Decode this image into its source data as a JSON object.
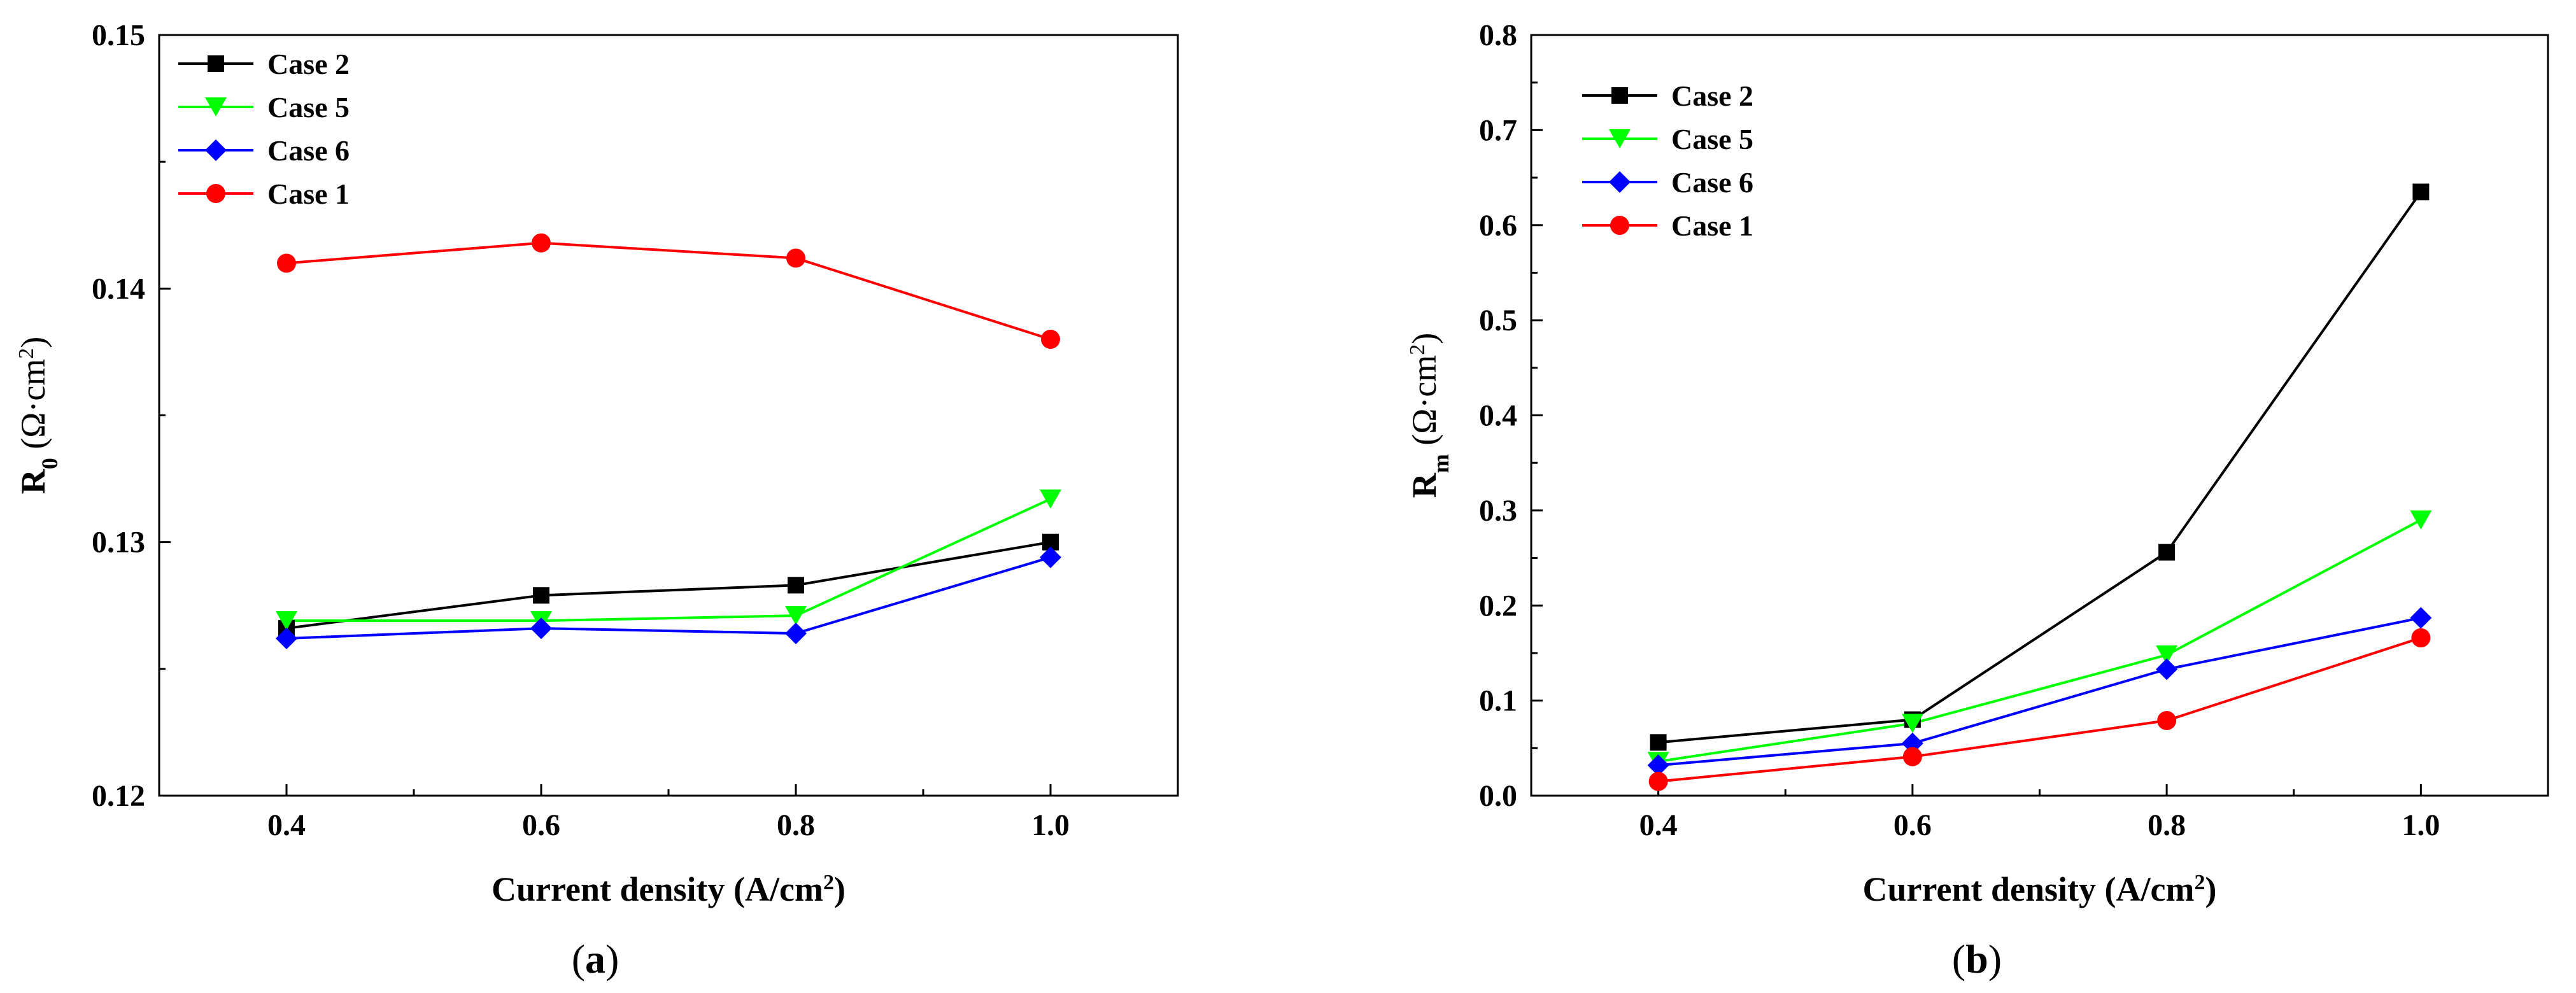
{
  "chart_data": [
    {
      "type": "line",
      "panel_label": "(a)",
      "panel_prefix": "(",
      "panel_letter": "a",
      "panel_suffix": ")",
      "xlabel_main": "Current density (A/cm",
      "xlabel_sup": "2",
      "xlabel_end": ")",
      "ylabel_main": "R",
      "ylabel_sub": "0",
      "ylabel_unit": "(Ω·cm",
      "ylabel_unit_sup": "2",
      "ylabel_unit_end": ")",
      "xlim": [
        0.3,
        1.1
      ],
      "ylim": [
        0.12,
        0.15
      ],
      "xticks": [
        0.4,
        0.6,
        0.8,
        1.0
      ],
      "xtick_labels": [
        "0.4",
        "0.6",
        "0.8",
        "1.0"
      ],
      "yticks": [
        0.12,
        0.13,
        0.14,
        0.15
      ],
      "ytick_labels": [
        "0.12",
        "0.13",
        "0.14",
        "0.15"
      ],
      "legend_position": "top-left",
      "x": [
        0.4,
        0.6,
        0.8,
        1.0
      ],
      "series": [
        {
          "name": "Case 2",
          "color": "#000000",
          "marker": "square",
          "values": [
            0.1266,
            0.1279,
            0.1283,
            0.13
          ]
        },
        {
          "name": "Case 5",
          "color": "#00ff00",
          "marker": "triangle-down",
          "values": [
            0.1269,
            0.1269,
            0.1271,
            0.1317
          ]
        },
        {
          "name": "Case 6",
          "color": "#0000ff",
          "marker": "diamond",
          "values": [
            0.1262,
            0.1266,
            0.1264,
            0.1294
          ]
        },
        {
          "name": "Case 1",
          "color": "#ff0000",
          "marker": "circle",
          "values": [
            0.141,
            0.1418,
            0.1412,
            0.138
          ]
        }
      ]
    },
    {
      "type": "line",
      "panel_label": "(b)",
      "panel_prefix": "(",
      "panel_letter": "b",
      "panel_suffix": ")",
      "xlabel_main": "Current density (A/cm",
      "xlabel_sup": "2",
      "xlabel_end": ")",
      "ylabel_main": "R",
      "ylabel_sub": "m",
      "ylabel_unit": "(Ω·cm",
      "ylabel_unit_sup": "2",
      "ylabel_unit_end": ")",
      "xlim": [
        0.3,
        1.1
      ],
      "ylim": [
        0.0,
        0.8
      ],
      "xticks": [
        0.4,
        0.6,
        0.8,
        1.0
      ],
      "xtick_labels": [
        "0.4",
        "0.6",
        "0.8",
        "1.0"
      ],
      "yticks": [
        0.0,
        0.1,
        0.2,
        0.3,
        0.4,
        0.5,
        0.6,
        0.7,
        0.8
      ],
      "ytick_labels": [
        "0.0",
        "0.1",
        "0.2",
        "0.3",
        "0.4",
        "0.5",
        "0.6",
        "0.7",
        "0.8"
      ],
      "legend_position": "top-left",
      "x": [
        0.4,
        0.6,
        0.8,
        1.0
      ],
      "series": [
        {
          "name": "Case 2",
          "color": "#000000",
          "marker": "square",
          "values": [
            0.056,
            0.08,
            0.256,
            0.635
          ]
        },
        {
          "name": "Case 5",
          "color": "#00ff00",
          "marker": "triangle-down",
          "values": [
            0.036,
            0.076,
            0.148,
            0.29
          ]
        },
        {
          "name": "Case 6",
          "color": "#0000ff",
          "marker": "diamond",
          "values": [
            0.032,
            0.055,
            0.133,
            0.187
          ]
        },
        {
          "name": "Case 1",
          "color": "#ff0000",
          "marker": "circle",
          "values": [
            0.015,
            0.041,
            0.079,
            0.166
          ]
        }
      ]
    }
  ]
}
